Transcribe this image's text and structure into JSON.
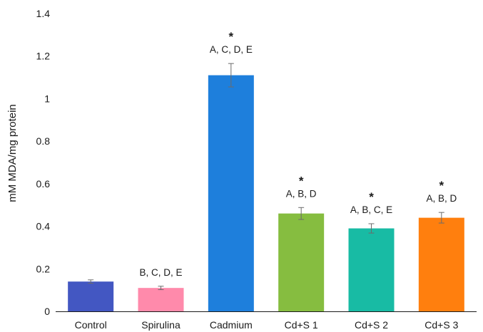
{
  "chart_data": {
    "type": "bar",
    "categories": [
      "Control",
      "Spirulina",
      "Cadmium",
      "Cd+S 1",
      "Cd+S 2",
      "Cd+S 3"
    ],
    "values": [
      0.14,
      0.11,
      1.11,
      0.46,
      0.39,
      0.44
    ],
    "errors": [
      0.008,
      0.008,
      0.055,
      0.028,
      0.022,
      0.025
    ],
    "colors": [
      "#4357c2",
      "#ff8aab",
      "#1e7fdc",
      "#86bd40",
      "#18bba4",
      "#ff7f0e"
    ],
    "annotations": [
      "",
      "B, C, D, E",
      "A, C, D, E",
      "A, B, D",
      "A, B, C, E",
      "A, B, D"
    ],
    "significance": [
      "",
      "",
      "*",
      "*",
      "*",
      "*"
    ],
    "title": "",
    "xlabel": "",
    "ylabel": "mM MDA/mg protein",
    "ylim": [
      0,
      1.4
    ],
    "yticks": [
      "0",
      "0.2",
      "0.4",
      "0.6",
      "0.8",
      "1",
      "1.2",
      "1.4"
    ],
    "grid": false,
    "legend": "none"
  }
}
